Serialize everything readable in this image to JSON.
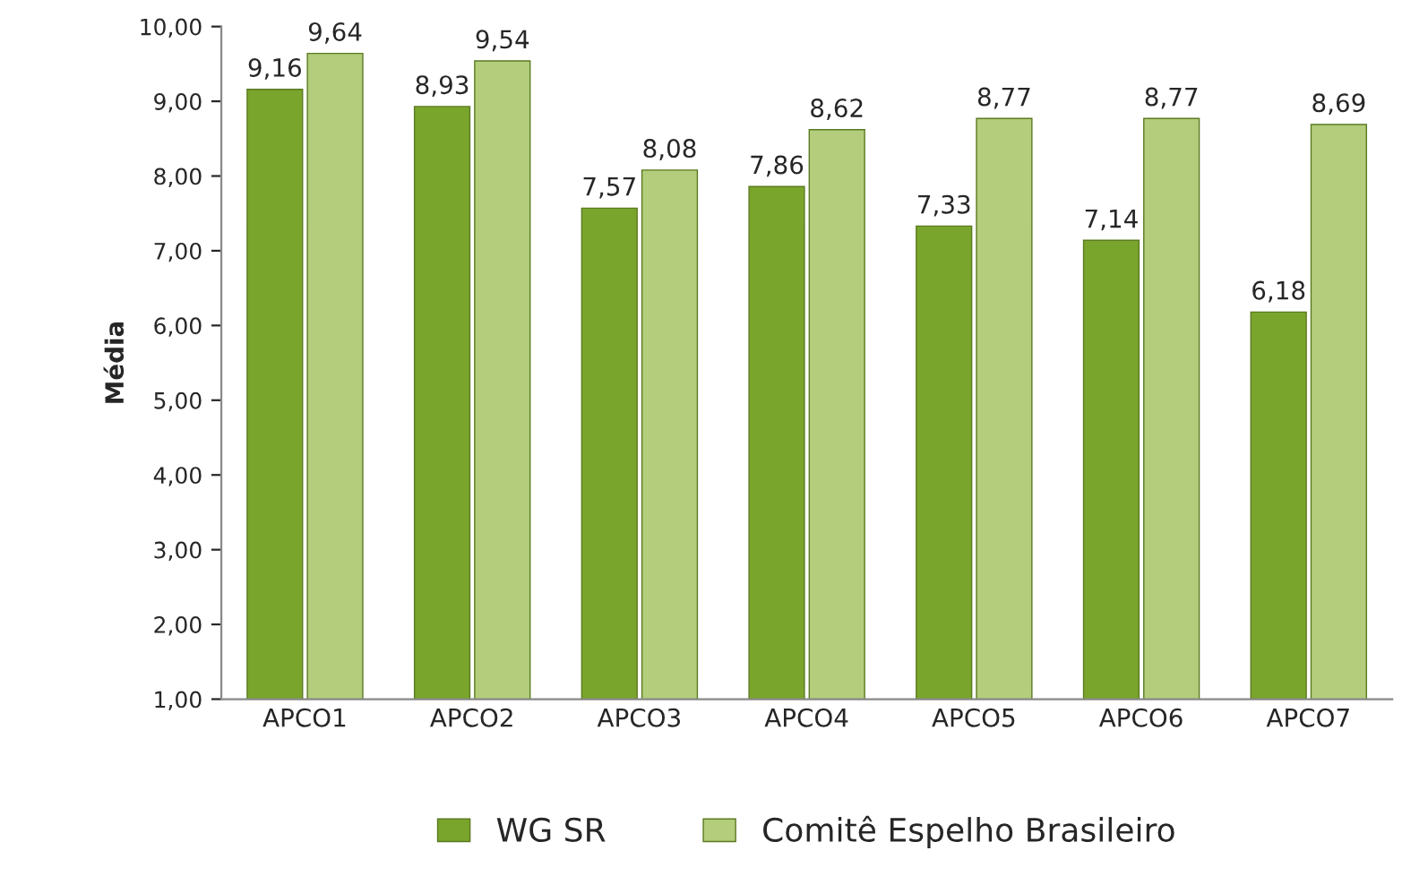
{
  "chart_data": {
    "type": "bar",
    "ylabel": "Média",
    "categories": [
      "APCO1",
      "APCO2",
      "APCO3",
      "APCO4",
      "APCO5",
      "APCO6",
      "APCO7"
    ],
    "series": [
      {
        "name": "WG SR",
        "color": "#7aa52c",
        "values": [
          9.16,
          8.93,
          7.57,
          7.86,
          7.33,
          7.14,
          6.18
        ],
        "value_labels": [
          "9,16",
          "8,93",
          "7,57",
          "7,86",
          "7,33",
          "7,14",
          "6,18"
        ]
      },
      {
        "name": "Comitê Espelho Brasileiro",
        "color": "#b3cd7c",
        "values": [
          9.64,
          9.54,
          8.08,
          8.62,
          8.77,
          8.77,
          8.69
        ],
        "value_labels": [
          "9,64",
          "9,54",
          "8,08",
          "8,62",
          "8,77",
          "8,77",
          "8,69"
        ]
      }
    ],
    "ylim": [
      1,
      10
    ],
    "yticks": [
      {
        "value": 1,
        "label": "1,00"
      },
      {
        "value": 2,
        "label": "2,00"
      },
      {
        "value": 3,
        "label": "3,00"
      },
      {
        "value": 4,
        "label": "4,00"
      },
      {
        "value": 5,
        "label": "5,00"
      },
      {
        "value": 6,
        "label": "6,00"
      },
      {
        "value": 7,
        "label": "7,00"
      },
      {
        "value": 8,
        "label": "8,00"
      },
      {
        "value": 9,
        "label": "9,00"
      },
      {
        "value": 10,
        "label": "10,00"
      }
    ],
    "grid": false,
    "legend": "bottom"
  }
}
